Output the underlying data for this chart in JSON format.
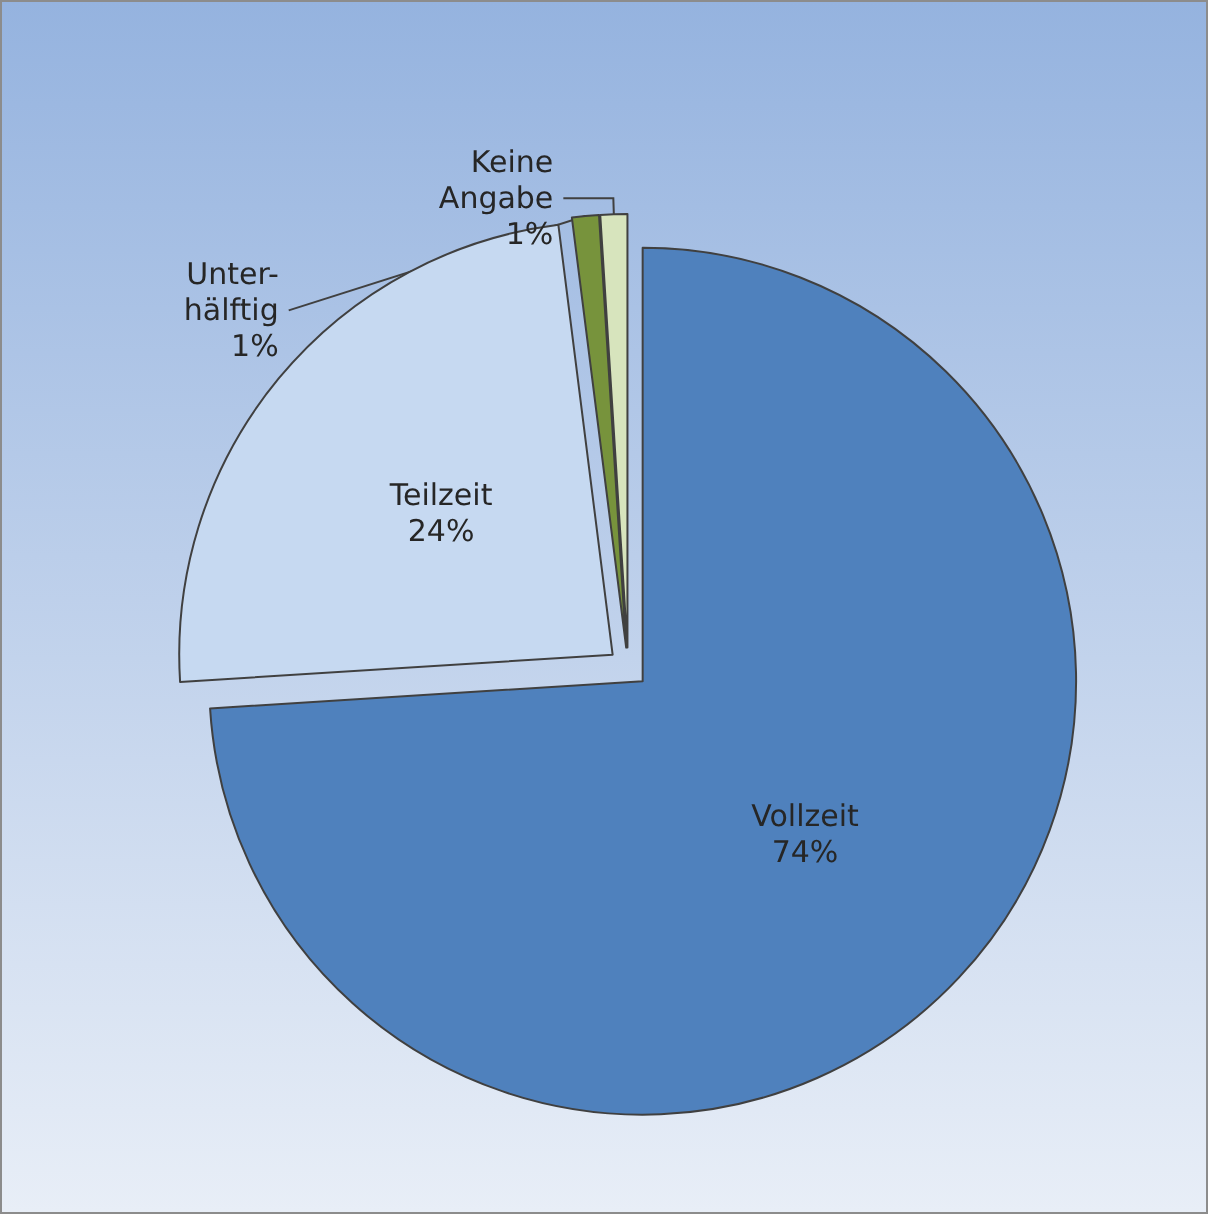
{
  "chart_data": {
    "type": "pie",
    "categories": [
      "Vollzeit",
      "Teilzeit",
      "Unter-hälftig",
      "Keine Angabe"
    ],
    "values": [
      74,
      24,
      1,
      1
    ],
    "value_labels": [
      "74%",
      "24%",
      "1%",
      "1%"
    ],
    "colors": [
      "#4f81bd",
      "#c6d9f1",
      "#77933c",
      "#d7e4bd"
    ],
    "legend": false
  }
}
